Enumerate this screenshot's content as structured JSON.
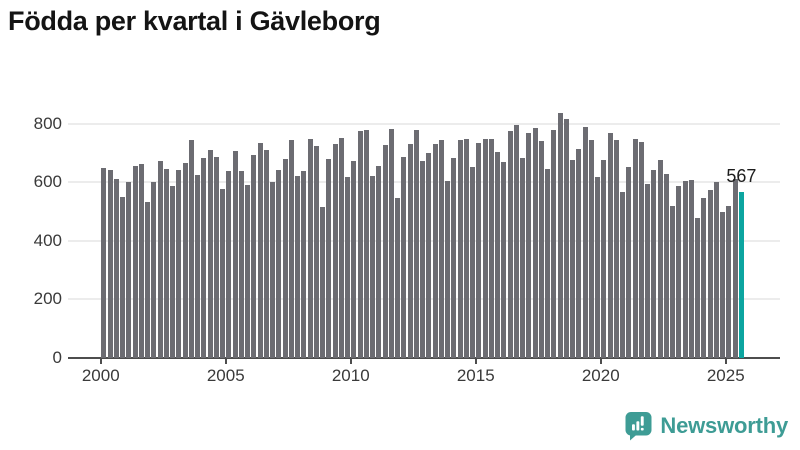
{
  "title": "Födda per kvartal i Gävleborg",
  "chart_data": {
    "type": "bar",
    "title": "Födda per kvartal i Gävleborg",
    "x_start": "2000 Q1",
    "x_end": "2025 Q3",
    "y_axis": {
      "ticks": [
        0,
        200,
        400,
        600,
        800
      ],
      "max": 880,
      "grid": true
    },
    "x_axis": {
      "ticks": [
        "2000",
        "2005",
        "2010",
        "2015",
        "2020",
        "2025"
      ]
    },
    "series": [
      {
        "name": "Födda per kvartal",
        "color": "#6c6c72",
        "values_by_year": [
          {
            "year": 2000,
            "values": [
              648,
              643,
              610,
              551
            ]
          },
          {
            "year": 2001,
            "values": [
              602,
              656,
              661,
              531
            ]
          },
          {
            "year": 2002,
            "values": [
              602,
              674,
              645,
              589
            ]
          },
          {
            "year": 2003,
            "values": [
              643,
              666,
              743,
              625
            ]
          },
          {
            "year": 2004,
            "values": [
              683,
              710,
              688,
              576
            ]
          },
          {
            "year": 2005,
            "values": [
              640,
              706,
              637,
              591
            ]
          },
          {
            "year": 2006,
            "values": [
              694,
              734,
              711,
              602
            ]
          },
          {
            "year": 2007,
            "values": [
              643,
              679,
              744,
              620
            ]
          },
          {
            "year": 2008,
            "values": [
              640,
              748,
              723,
              514
            ]
          },
          {
            "year": 2009,
            "values": [
              679,
              730,
              752,
              617
            ]
          },
          {
            "year": 2010,
            "values": [
              674,
              775,
              778,
              620
            ]
          },
          {
            "year": 2011,
            "values": [
              656,
              729,
              783,
              545
            ]
          },
          {
            "year": 2012,
            "values": [
              686,
              731,
              780,
              671
            ]
          },
          {
            "year": 2013,
            "values": [
              700,
              732,
              744,
              605
            ]
          },
          {
            "year": 2014,
            "values": [
              683,
              744,
              748,
              651
            ]
          },
          {
            "year": 2015,
            "values": [
              734,
              748,
              748,
              702
            ]
          },
          {
            "year": 2016,
            "values": [
              668,
              775,
              794,
              683
            ]
          },
          {
            "year": 2017,
            "values": [
              769,
              786,
              740,
              646
            ]
          },
          {
            "year": 2018,
            "values": [
              780,
              838,
              817,
              675
            ]
          },
          {
            "year": 2019,
            "values": [
              714,
              789,
              744,
              617
            ]
          },
          {
            "year": 2020,
            "values": [
              677,
              769,
              744,
              566
            ]
          },
          {
            "year": 2021,
            "values": [
              652,
              748,
              737,
              593
            ]
          },
          {
            "year": 2022,
            "values": [
              643,
              677,
              629,
              518
            ]
          },
          {
            "year": 2023,
            "values": [
              587,
              605,
              608,
              478
            ]
          },
          {
            "year": 2024,
            "values": [
              545,
              574,
              602,
              499
            ]
          },
          {
            "year": 2025,
            "values": [
              518,
              612,
              567
            ]
          }
        ]
      }
    ],
    "highlight": {
      "period": "2025 Q3",
      "value": 567,
      "label": "567",
      "color": "#0ca5a0"
    },
    "legend": "none"
  },
  "logo": {
    "text": "Newsworthy",
    "color": "#3e9c95",
    "icon": "newsworthy-speech-bubble-chart-icon"
  },
  "colors": {
    "bar": "#6c6c72",
    "highlight_bar": "#0ca5a0",
    "gridline": "#ececec",
    "axis": "#4d4d4d",
    "axis_text": "#3a3a3a",
    "title_text": "#141414"
  }
}
